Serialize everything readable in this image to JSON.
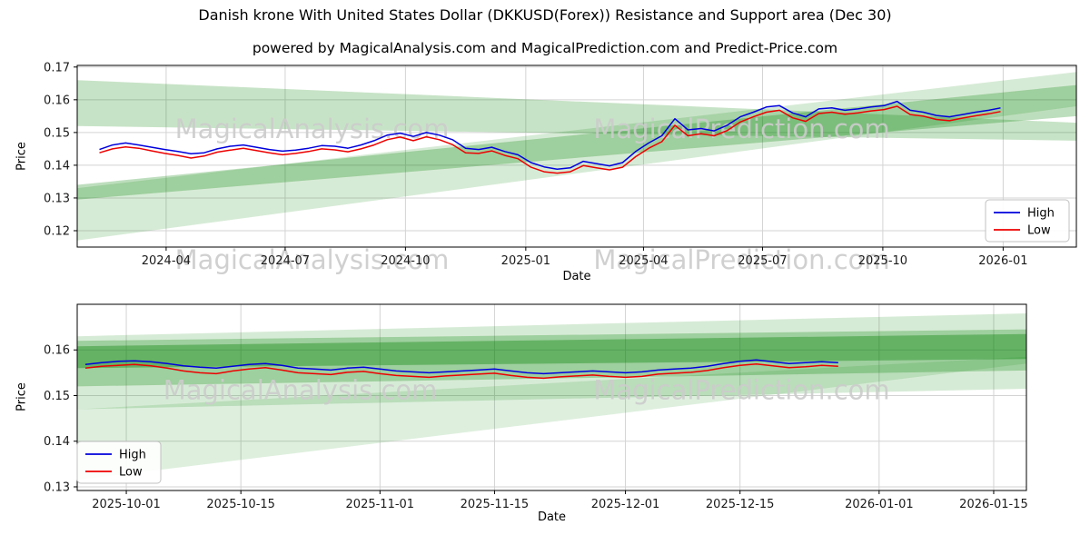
{
  "chart_data": {
    "type": "line",
    "title": "Danish krone With United States Dollar (DKKUSD(Forex)) Resistance and Support area (Dec 30)",
    "subtitle": "powered by MagicalAnalysis.com and MagicalPrediction.com and Predict-Price.com",
    "colors": {
      "high": "#0000dd",
      "low": "#ee0000",
      "band": "#008000",
      "grid": "#d3d3d3",
      "watermark": "#cccccc",
      "axis": "#000000",
      "tick_text": "#1a1a1a",
      "legend_border": "#c0c0c0"
    },
    "charts": [
      {
        "name": "overview",
        "ylabel": "Price",
        "xlabel": "Date",
        "xlim": [
          "2024-01-24",
          "2026-02-26"
        ],
        "ylim": [
          0.115,
          0.1705
        ],
        "yticks": [
          0.12,
          0.13,
          0.14,
          0.15,
          0.16,
          0.17
        ],
        "ytick_labels": [
          "0.12",
          "0.13",
          "0.14",
          "0.15",
          "0.16",
          "0.17"
        ],
        "xticks": [
          "2024-04-01",
          "2024-07-01",
          "2024-10-01",
          "2025-01-01",
          "2025-04-01",
          "2025-07-01",
          "2025-10-01",
          "2026-01-01"
        ],
        "xtick_labels": [
          "2024-04",
          "2024-07",
          "2024-10",
          "2025-01",
          "2025-04",
          "2025-07",
          "2025-10",
          "2026-01"
        ],
        "legend": {
          "loc": "lower-right",
          "items": [
            {
              "label": "High",
              "color": "high"
            },
            {
              "label": "Low",
              "color": "low"
            }
          ]
        },
        "watermarks": [
          {
            "fy": 0.4,
            "fx": [
              0.235,
              0.665
            ],
            "texts": [
              "MagicalAnalysis.com",
              "MagicalPrediction.com"
            ]
          },
          {
            "fy": 1.12,
            "fx": [
              0.235,
              0.665
            ],
            "texts": [
              "MagicalAnalysis.com",
              "MagicalPrediction.com"
            ]
          }
        ],
        "bands": [
          {
            "alpha": 0.16,
            "points": [
              [
                "2024-01-24",
                0.117
              ],
              [
                "2026-02-26",
                0.158
              ],
              [
                "2026-02-26",
                0.1685
              ],
              [
                "2024-01-24",
                0.133
              ]
            ]
          },
          {
            "alpha": 0.26,
            "points": [
              [
                "2024-01-24",
                0.1295
              ],
              [
                "2026-02-26",
                0.155
              ],
              [
                "2026-02-26",
                0.1645
              ],
              [
                "2024-01-24",
                0.134
              ]
            ]
          },
          {
            "alpha": 0.22,
            "points": [
              [
                "2024-01-24",
                0.152
              ],
              [
                "2026-02-26",
                0.1475
              ],
              [
                "2026-02-26",
                0.153
              ],
              [
                "2024-01-24",
                0.166
              ]
            ]
          }
        ],
        "dates": [
          "2024-02-10",
          "2024-02-20",
          "2024-03-01",
          "2024-03-11",
          "2024-03-21",
          "2024-03-31",
          "2024-04-10",
          "2024-04-20",
          "2024-04-30",
          "2024-05-10",
          "2024-05-20",
          "2024-05-30",
          "2024-06-09",
          "2024-06-19",
          "2024-06-29",
          "2024-07-09",
          "2024-07-19",
          "2024-07-29",
          "2024-08-08",
          "2024-08-18",
          "2024-08-28",
          "2024-09-07",
          "2024-09-17",
          "2024-09-27",
          "2024-10-07",
          "2024-10-17",
          "2024-10-27",
          "2024-11-06",
          "2024-11-16",
          "2024-11-26",
          "2024-12-06",
          "2024-12-16",
          "2024-12-26",
          "2025-01-05",
          "2025-01-15",
          "2025-01-25",
          "2025-02-04",
          "2025-02-14",
          "2025-02-24",
          "2025-03-06",
          "2025-03-16",
          "2025-03-26",
          "2025-04-05",
          "2025-04-15",
          "2025-04-25",
          "2025-05-05",
          "2025-05-15",
          "2025-05-25",
          "2025-06-04",
          "2025-06-14",
          "2025-06-24",
          "2025-07-04",
          "2025-07-14",
          "2025-07-24",
          "2025-08-03",
          "2025-08-13",
          "2025-08-23",
          "2025-09-02",
          "2025-09-12",
          "2025-09-22",
          "2025-10-02",
          "2025-10-12",
          "2025-10-22",
          "2025-11-01",
          "2025-11-11",
          "2025-11-21",
          "2025-12-01",
          "2025-12-11",
          "2025-12-21",
          "2025-12-30"
        ],
        "series": [
          {
            "name": "High",
            "color": "high",
            "values": [
              0.1448,
              0.1462,
              0.1468,
              0.1462,
              0.1455,
              0.1448,
              0.1442,
              0.1435,
              0.1438,
              0.145,
              0.1458,
              0.1462,
              0.1455,
              0.1448,
              0.1443,
              0.1446,
              0.1452,
              0.146,
              0.1458,
              0.1452,
              0.1462,
              0.1475,
              0.1492,
              0.1498,
              0.1488,
              0.15,
              0.1492,
              0.1478,
              0.1452,
              0.1448,
              0.1455,
              0.1442,
              0.1432,
              0.1408,
              0.1395,
              0.1388,
              0.1392,
              0.1412,
              0.1405,
              0.1398,
              0.1408,
              0.1442,
              0.1468,
              0.149,
              0.1542,
              0.1508,
              0.1512,
              0.1505,
              0.1522,
              0.1548,
              0.1562,
              0.1578,
              0.1582,
              0.156,
              0.1548,
              0.1572,
              0.1575,
              0.1568,
              0.1572,
              0.1578,
              0.1582,
              0.1595,
              0.1568,
              0.1562,
              0.1552,
              0.1548,
              0.1555,
              0.1562,
              0.1568,
              0.1575
            ]
          },
          {
            "name": "Low",
            "color": "low",
            "values": [
              0.1438,
              0.145,
              0.1456,
              0.1452,
              0.1444,
              0.1436,
              0.143,
              0.1422,
              0.1428,
              0.144,
              0.1446,
              0.1452,
              0.1445,
              0.1438,
              0.1432,
              0.1436,
              0.1442,
              0.145,
              0.1447,
              0.1441,
              0.145,
              0.1462,
              0.1478,
              0.1486,
              0.1475,
              0.1487,
              0.1478,
              0.1463,
              0.1438,
              0.1436,
              0.1444,
              0.143,
              0.142,
              0.1394,
              0.138,
              0.1376,
              0.138,
              0.1399,
              0.1392,
              0.1386,
              0.1394,
              0.1426,
              0.1452,
              0.1472,
              0.1522,
              0.149,
              0.1496,
              0.149,
              0.1506,
              0.1532,
              0.1548,
              0.1562,
              0.1568,
              0.1545,
              0.1534,
              0.1558,
              0.1562,
              0.1556,
              0.156,
              0.1566,
              0.157,
              0.158,
              0.1555,
              0.155,
              0.154,
              0.1536,
              0.1544,
              0.1551,
              0.1557,
              0.1564
            ]
          }
        ]
      },
      {
        "name": "recent",
        "ylabel": "Price",
        "xlabel": "Date",
        "xlim": [
          "2025-09-25",
          "2026-01-19"
        ],
        "ylim": [
          0.1292,
          0.17
        ],
        "yticks": [
          0.13,
          0.14,
          0.15,
          0.16
        ],
        "ytick_labels": [
          "0.13",
          "0.14",
          "0.15",
          "0.16"
        ],
        "xticks": [
          "2025-10-01",
          "2025-10-15",
          "2025-11-01",
          "2025-11-15",
          "2025-12-01",
          "2025-12-15",
          "2026-01-01",
          "2026-01-15"
        ],
        "xtick_labels": [
          "2025-10-01",
          "2025-10-15",
          "2025-11-01",
          "2025-11-15",
          "2025-12-01",
          "2025-12-15",
          "2026-01-01",
          "2026-01-15"
        ],
        "legend": {
          "loc": "lower-left",
          "items": [
            {
              "label": "High",
              "color": "high"
            },
            {
              "label": "Low",
              "color": "low"
            }
          ]
        },
        "watermarks": [
          {
            "fy": 0.51,
            "fx": [
              0.235,
              0.7
            ],
            "texts": [
              "MagicalAnalysis.com",
              "MagicalPrediction.com"
            ]
          }
        ],
        "bands": [
          {
            "alpha": 0.13,
            "points": [
              [
                "2025-09-25",
                0.1315
              ],
              [
                "2026-01-19",
                0.157
              ],
              [
                "2026-01-19",
                0.1585
              ],
              [
                "2025-09-25",
                0.147
              ]
            ]
          },
          {
            "alpha": 0.16,
            "points": [
              [
                "2025-09-25",
                0.147
              ],
              [
                "2026-01-19",
                0.1515
              ],
              [
                "2026-01-19",
                0.168
              ],
              [
                "2025-09-25",
                0.163
              ]
            ]
          },
          {
            "alpha": 0.26,
            "points": [
              [
                "2025-09-25",
                0.152
              ],
              [
                "2026-01-19",
                0.1555
              ],
              [
                "2026-01-19",
                0.1645
              ],
              [
                "2025-09-25",
                0.162
              ]
            ]
          },
          {
            "alpha": 0.36,
            "points": [
              [
                "2025-09-25",
                0.156
              ],
              [
                "2026-01-19",
                0.158
              ],
              [
                "2026-01-19",
                0.1635
              ],
              [
                "2025-09-25",
                0.1608
              ]
            ]
          }
        ],
        "dates": [
          "2025-09-26",
          "2025-09-28",
          "2025-09-30",
          "2025-10-02",
          "2025-10-04",
          "2025-10-06",
          "2025-10-08",
          "2025-10-10",
          "2025-10-12",
          "2025-10-14",
          "2025-10-16",
          "2025-10-18",
          "2025-10-20",
          "2025-10-22",
          "2025-10-24",
          "2025-10-26",
          "2025-10-28",
          "2025-10-30",
          "2025-11-01",
          "2025-11-03",
          "2025-11-05",
          "2025-11-07",
          "2025-11-09",
          "2025-11-11",
          "2025-11-13",
          "2025-11-15",
          "2025-11-17",
          "2025-11-19",
          "2025-11-21",
          "2025-11-23",
          "2025-11-25",
          "2025-11-27",
          "2025-11-29",
          "2025-12-01",
          "2025-12-03",
          "2025-12-05",
          "2025-12-07",
          "2025-12-09",
          "2025-12-11",
          "2025-12-13",
          "2025-12-15",
          "2025-12-17",
          "2025-12-19",
          "2025-12-21",
          "2025-12-23",
          "2025-12-25",
          "2025-12-27"
        ],
        "series": [
          {
            "name": "High",
            "color": "high",
            "values": [
              0.1568,
              0.1572,
              0.1575,
              0.1576,
              0.1574,
              0.157,
              0.1565,
              0.1562,
              0.156,
              0.1564,
              0.1568,
              0.157,
              0.1566,
              0.156,
              0.1558,
              0.1556,
              0.156,
              0.1562,
              0.1558,
              0.1554,
              0.1552,
              0.155,
              0.1552,
              0.1554,
              0.1556,
              0.1558,
              0.1554,
              0.155,
              0.1548,
              0.155,
              0.1552,
              0.1554,
              0.1552,
              0.155,
              0.1552,
              0.1556,
              0.1558,
              0.156,
              0.1564,
              0.157,
              0.1575,
              0.1578,
              0.1574,
              0.157,
              0.1572,
              0.1574,
              0.1572
            ]
          },
          {
            "name": "Low",
            "color": "low",
            "values": [
              0.156,
              0.1564,
              0.1566,
              0.1568,
              0.1565,
              0.156,
              0.1554,
              0.155,
              0.1548,
              0.1554,
              0.1558,
              0.1561,
              0.1556,
              0.155,
              0.1548,
              0.1546,
              0.1551,
              0.1553,
              0.1548,
              0.1544,
              0.1542,
              0.154,
              0.1543,
              0.1545,
              0.1547,
              0.1549,
              0.1544,
              0.154,
              0.1538,
              0.1541,
              0.1543,
              0.1545,
              0.1542,
              0.154,
              0.1542,
              0.1547,
              0.1549,
              0.1551,
              0.1555,
              0.1561,
              0.1566,
              0.1569,
              0.1565,
              0.1561,
              0.1563,
              0.1566,
              0.1564
            ]
          }
        ]
      }
    ]
  }
}
